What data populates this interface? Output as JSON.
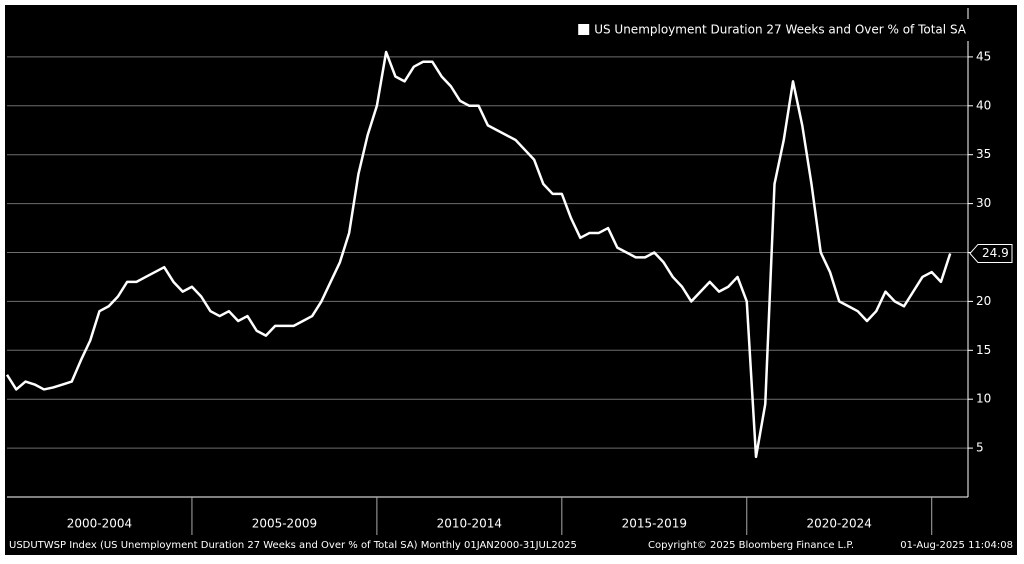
{
  "chart_data": {
    "type": "line",
    "legend_position": "upper right",
    "grid": true,
    "footer": [
      "USDUTWSP Index (US Unemployment Duration 27 Weeks and Over % of Total SA)  Monthly 01JAN2000-31JUL2025",
      "Copyright© 2025 Bloomberg Finance L.P.",
      "01-Aug-2025 11:04:08"
    ],
    "xlim": [
      2000,
      2025.9
    ],
    "xticks": [
      {
        "value": 2000,
        "label": "2000-2004"
      },
      {
        "value": 2005,
        "label": "2005-2009"
      },
      {
        "value": 2010,
        "label": "2010-2014"
      },
      {
        "value": 2015,
        "label": "2015-2019"
      },
      {
        "value": 2020,
        "label": "2020-2024"
      },
      {
        "value": 2025,
        "label": ""
      }
    ],
    "ylim": [
      0,
      50
    ],
    "yticks": [
      5,
      10,
      15,
      20,
      25,
      30,
      35,
      40,
      45
    ],
    "series": [
      {
        "name": "US Unemployment Duration 27 Weeks and Over % of Total SA",
        "color": "#ffffff",
        "x": [
          2000,
          2000.25,
          2000.5,
          2000.75,
          2001,
          2001.25,
          2001.5,
          2001.75,
          2002,
          2002.25,
          2002.5,
          2002.75,
          2003,
          2003.25,
          2003.5,
          2003.75,
          2004,
          2004.25,
          2004.5,
          2004.75,
          2005,
          2005.25,
          2005.5,
          2005.75,
          2006,
          2006.25,
          2006.5,
          2006.75,
          2007,
          2007.25,
          2007.5,
          2007.75,
          2008,
          2008.25,
          2008.5,
          2008.75,
          2009,
          2009.25,
          2009.5,
          2009.75,
          2010,
          2010.25,
          2010.5,
          2010.75,
          2011,
          2011.25,
          2011.5,
          2011.75,
          2012,
          2012.25,
          2012.5,
          2012.75,
          2013,
          2013.25,
          2013.5,
          2013.75,
          2014,
          2014.25,
          2014.5,
          2014.75,
          2015,
          2015.25,
          2015.5,
          2015.75,
          2016,
          2016.25,
          2016.5,
          2016.75,
          2017,
          2017.25,
          2017.5,
          2017.75,
          2018,
          2018.25,
          2018.5,
          2018.75,
          2019,
          2019.25,
          2019.5,
          2019.75,
          2020,
          2020.25,
          2020.5,
          2020.75,
          2021,
          2021.25,
          2021.5,
          2021.75,
          2022,
          2022.25,
          2022.5,
          2022.75,
          2023,
          2023.25,
          2023.5,
          2023.75,
          2024,
          2024.25,
          2024.5,
          2024.75,
          2025,
          2025.25,
          2025.5
        ],
        "values": [
          12.5,
          11,
          11.8,
          11.5,
          11,
          11.2,
          11.5,
          11.8,
          14,
          16,
          19,
          19.5,
          20.5,
          22,
          22,
          22.5,
          23,
          23.5,
          22,
          21,
          21.5,
          20.5,
          19,
          18.5,
          19,
          18,
          18.5,
          17,
          16.5,
          17.5,
          17.5,
          17.5,
          18,
          18.5,
          20,
          22,
          24,
          27,
          33,
          37,
          40,
          45.5,
          43,
          42.5,
          44,
          44.5,
          44.5,
          43,
          42,
          40.5,
          40,
          40,
          38,
          37.5,
          37,
          36.5,
          35.5,
          34.5,
          32,
          31,
          31,
          28.5,
          26.5,
          27,
          27,
          27.5,
          25.5,
          25,
          24.5,
          24.5,
          25,
          24,
          22.5,
          21.5,
          20,
          21,
          22,
          21,
          21.5,
          22.5,
          20,
          4.1,
          9.5,
          32,
          36.5,
          42.5,
          38,
          32,
          25,
          23,
          20,
          19.5,
          19,
          18,
          19,
          21,
          20,
          19.5,
          21,
          22.5,
          23,
          22,
          24.9
        ]
      }
    ]
  }
}
